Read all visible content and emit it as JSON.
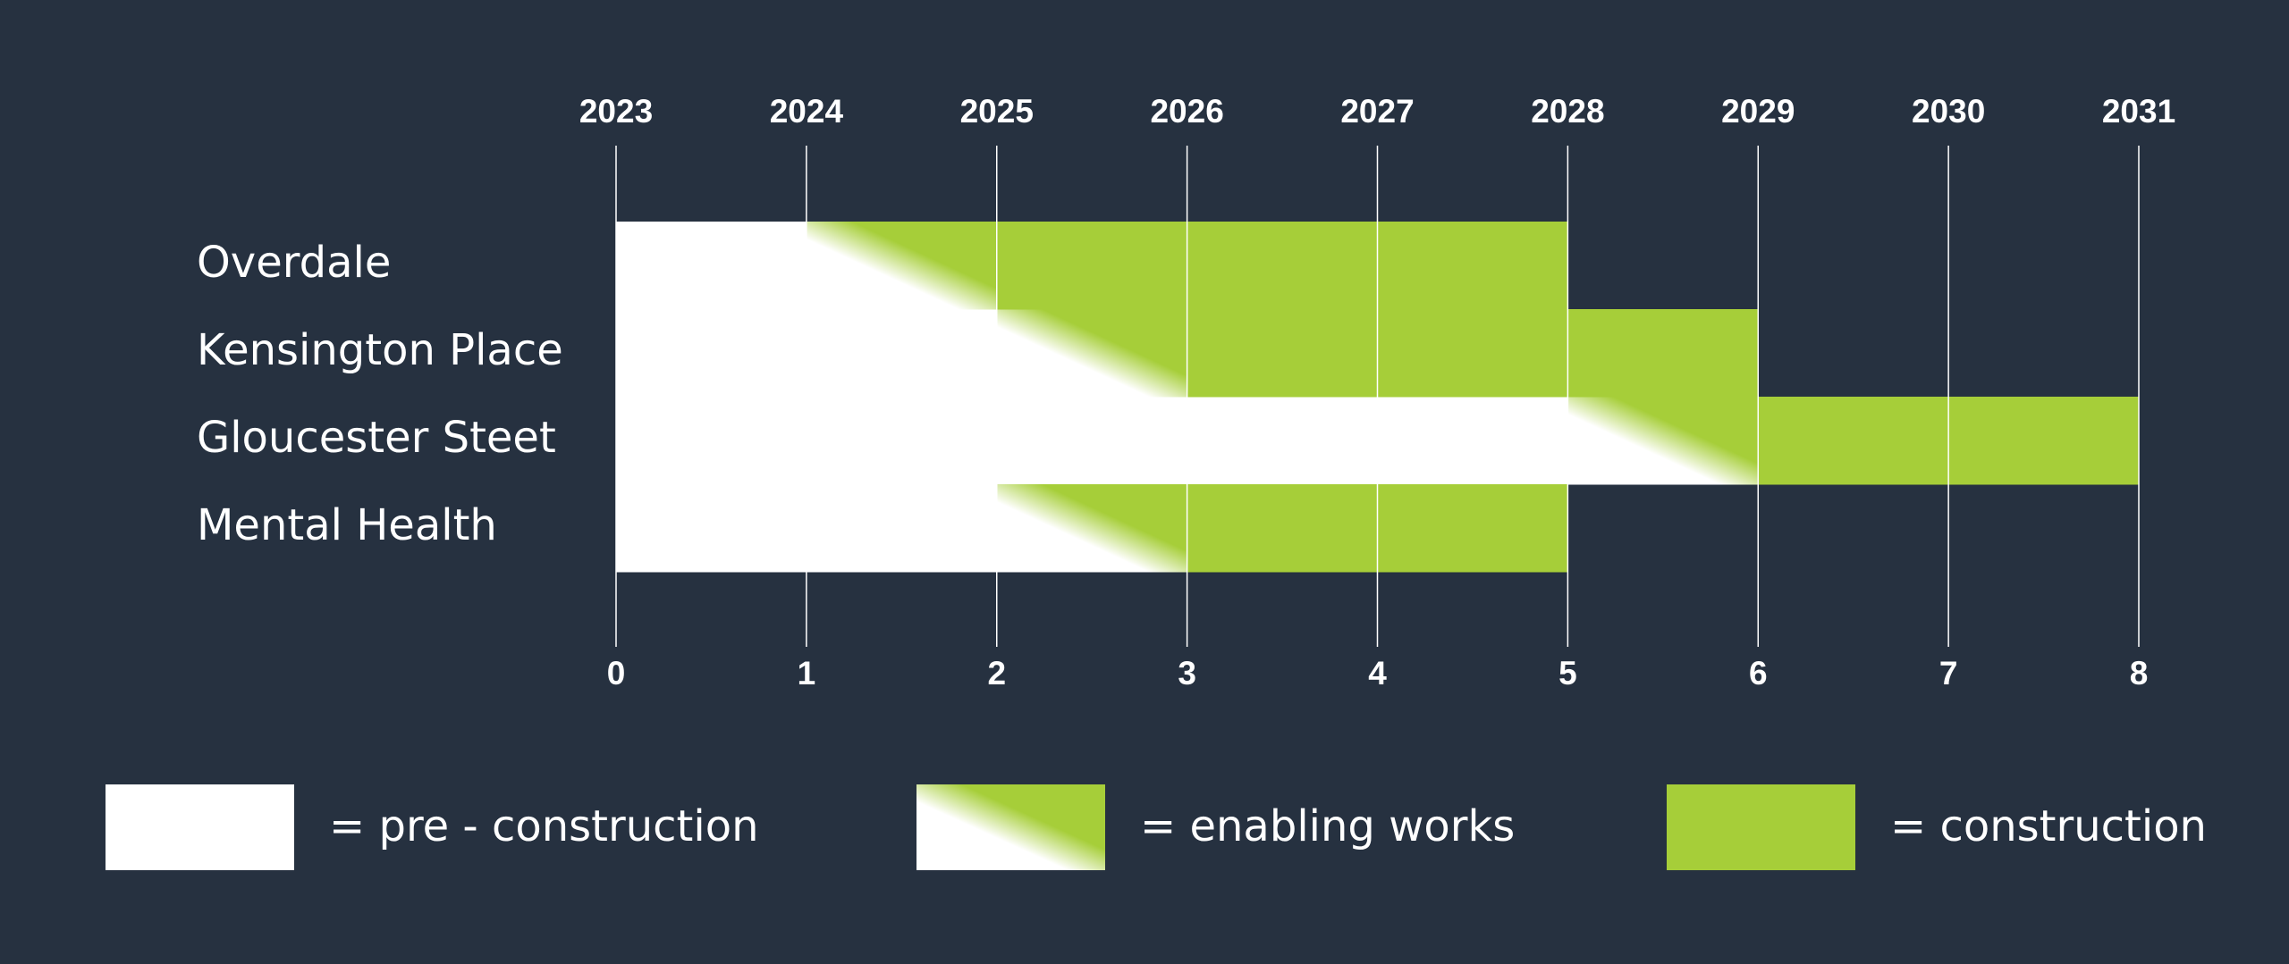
{
  "chart_data": {
    "type": "gantt",
    "categories": [
      "Overdale",
      "Kensington Place",
      "Gloucester Steet",
      "Mental Health"
    ],
    "series": [
      {
        "name": "= pre - construction",
        "color": "#ffffff",
        "start": [
          0,
          0,
          0,
          0
        ],
        "end": [
          1,
          2,
          5,
          2
        ]
      },
      {
        "name": "= enabling works",
        "gradient": [
          "#ffffff",
          "#a6ce39"
        ],
        "start": [
          1,
          2,
          5,
          2
        ],
        "end": [
          2,
          3,
          6,
          3
        ]
      },
      {
        "name": "= construction",
        "color": "#a6ce39",
        "start": [
          2,
          3,
          6,
          3
        ],
        "end": [
          5,
          6,
          8,
          5
        ]
      }
    ],
    "xlim": [
      0,
      8
    ],
    "xticks": [
      0,
      1,
      2,
      3,
      4,
      5,
      6,
      7,
      8
    ],
    "x2ticks": [
      {
        "value": 0,
        "label": "2023"
      },
      {
        "value": 1,
        "label": "2024"
      },
      {
        "value": 2,
        "label": "2025"
      },
      {
        "value": 3,
        "label": "2026"
      },
      {
        "value": 4,
        "label": "2027"
      },
      {
        "value": 5,
        "label": "2028"
      },
      {
        "value": 6,
        "label": "2029"
      },
      {
        "value": 7,
        "label": "2030"
      },
      {
        "value": 8,
        "label": "2031"
      }
    ],
    "grid": true
  }
}
